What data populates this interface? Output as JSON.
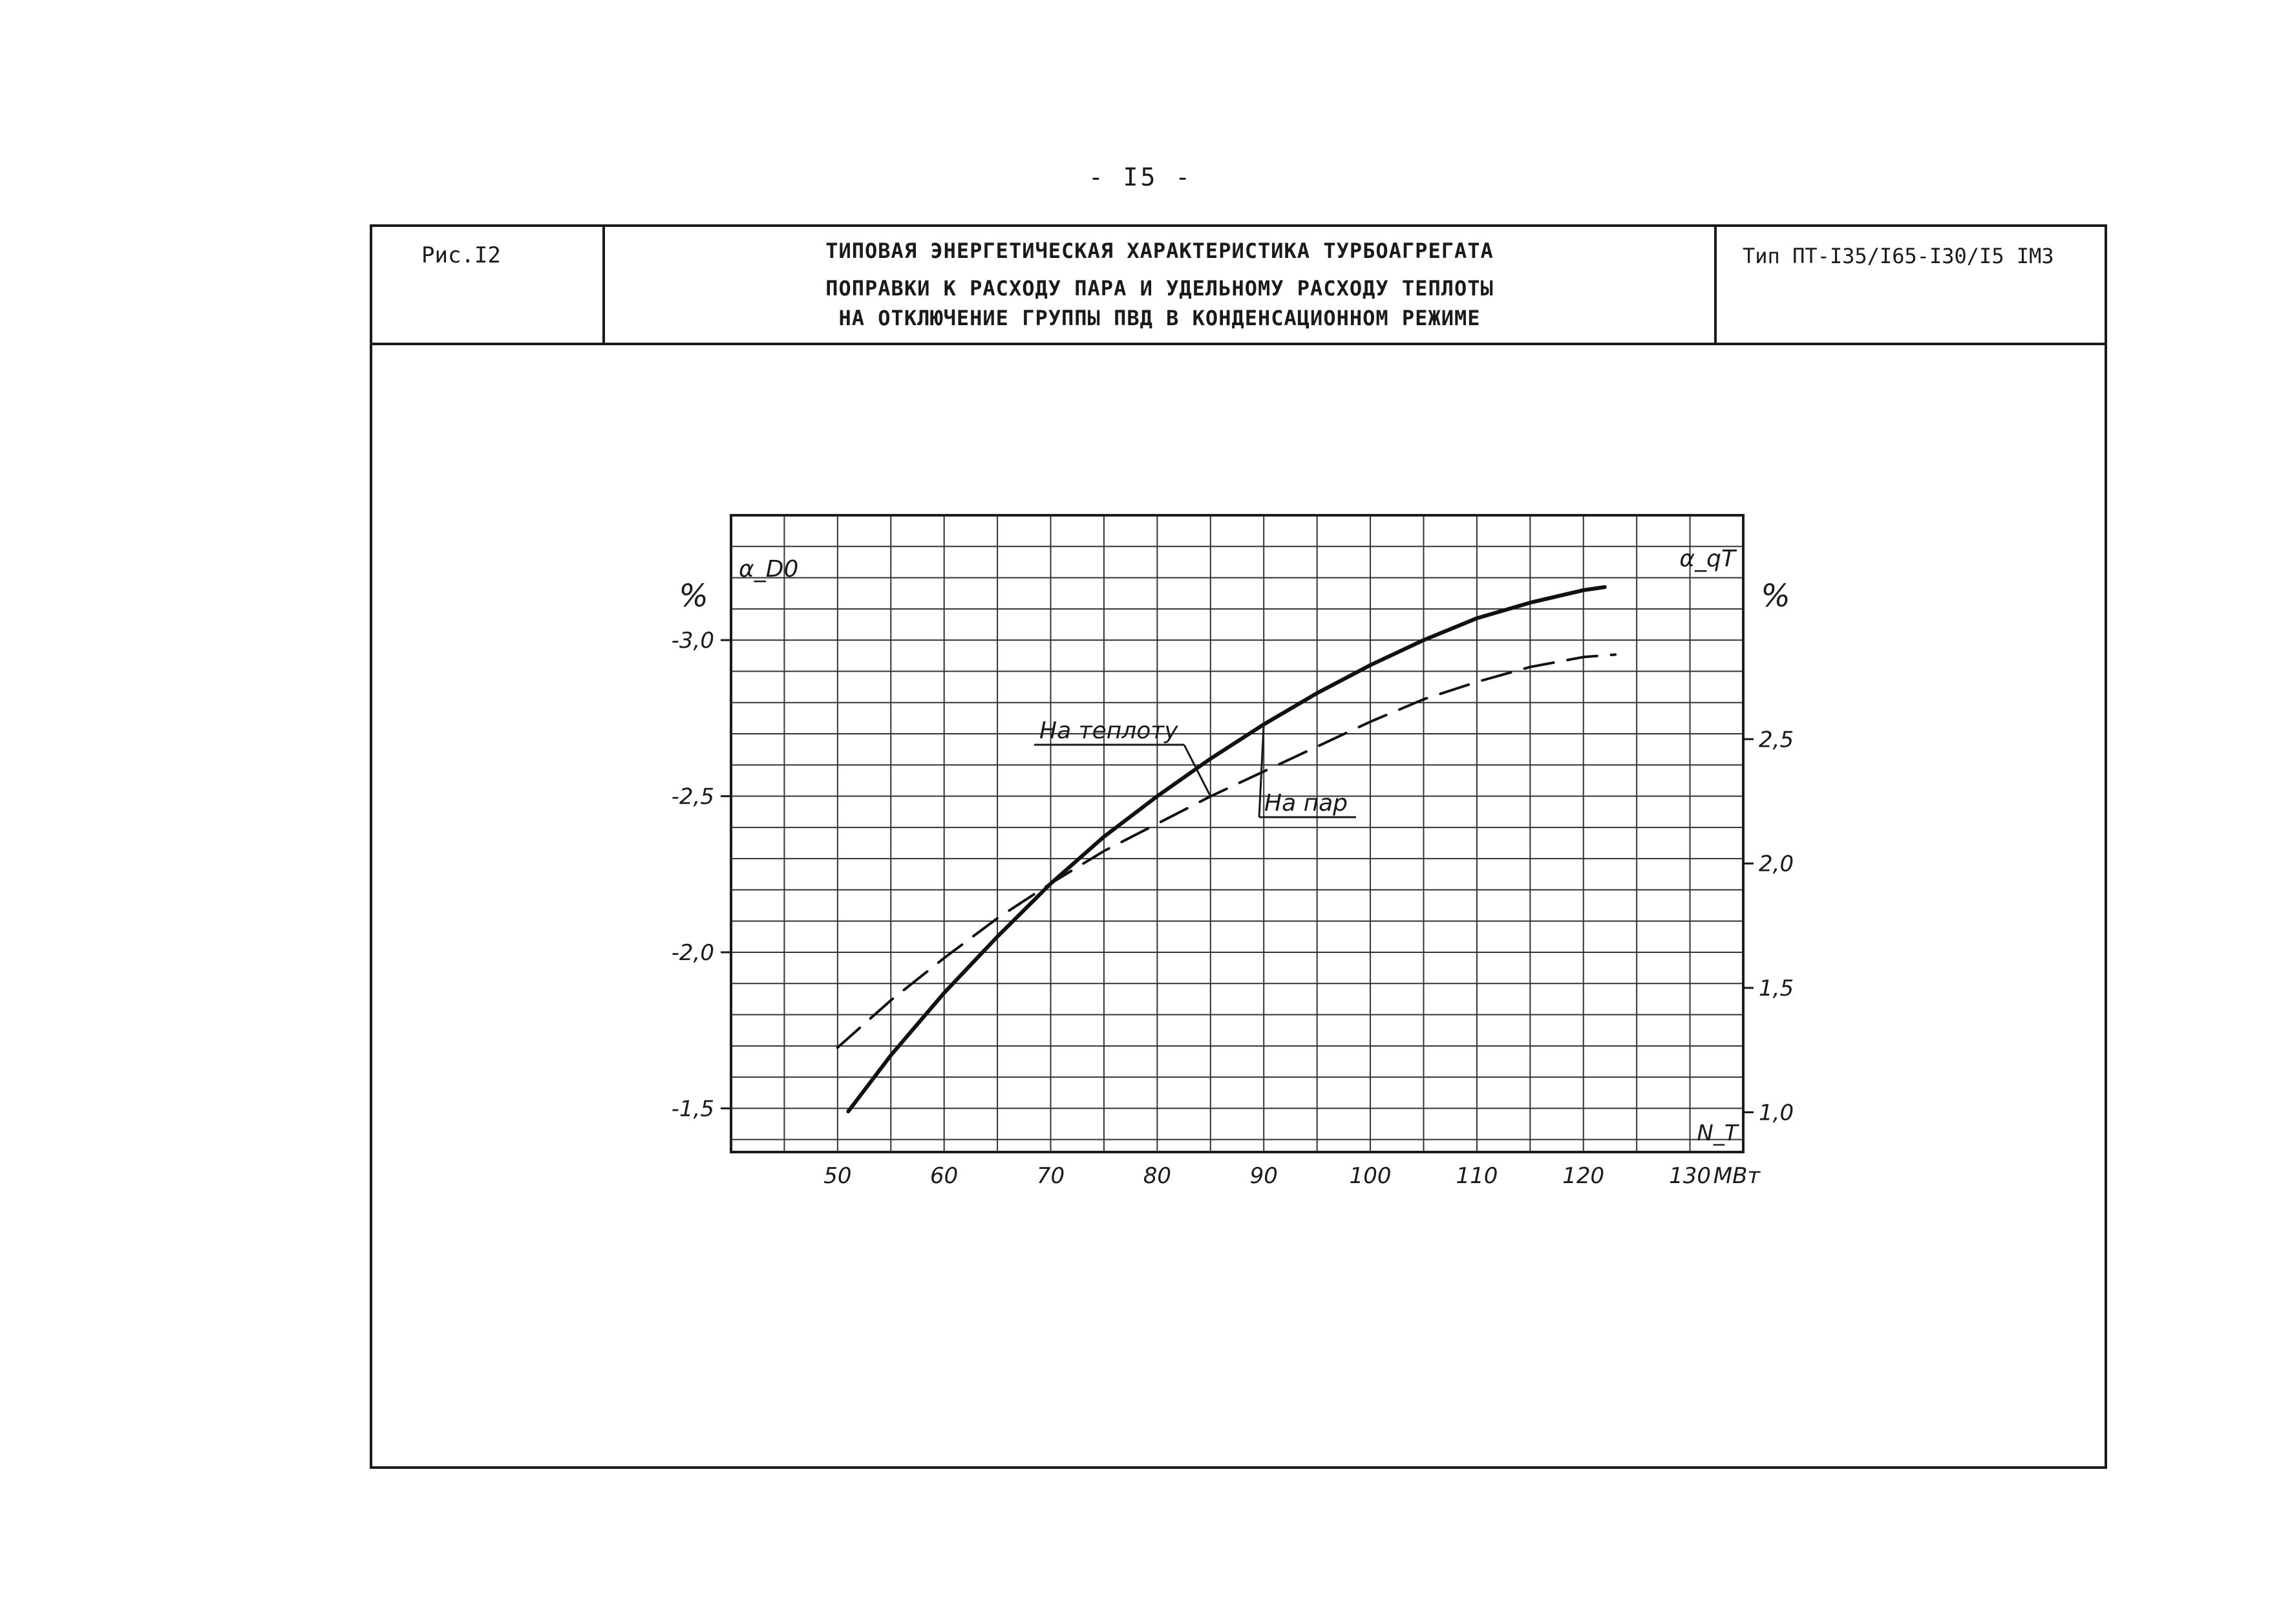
{
  "page_number": "- I5 -",
  "header": {
    "figure_label": "Рис.I2",
    "title_line1": "ТИПОВАЯ ЭНЕРГЕТИЧЕСКАЯ ХАРАКТЕРИСТИКА ТУРБОАГРЕГАТА",
    "title_line2": "ПОПРАВКИ К РАСХОДУ ПАРА И УДЕЛЬНОМУ РАСХОДУ ТЕПЛОТЫ",
    "title_line3": "НА ОТКЛЮЧЕНИЕ ГРУППЫ ПВД В КОНДЕНСАЦИОННОМ РЕЖИМЕ",
    "type_label": "Тип ПТ-I35/I65-I30/I5 ІМЗ"
  },
  "chart_data": {
    "type": "line",
    "x_axis": {
      "label": "МВт",
      "range": [
        40,
        135
      ],
      "ticks": [
        50,
        60,
        70,
        80,
        90,
        100,
        110,
        120,
        130
      ],
      "tick_labels": [
        "50",
        "60",
        "70",
        "80",
        "90",
        "100",
        "110",
        "120",
        "130"
      ],
      "end_label": "N_T"
    },
    "y_left": {
      "symbol": "α_D0",
      "unit": "%",
      "range": [
        -1.36,
        -3.4
      ],
      "ticks": [
        -3.0,
        -2.5,
        -2.0,
        -1.5
      ],
      "tick_labels": [
        "-3,0",
        "-2,5",
        "-2,0",
        "-1,5"
      ]
    },
    "y_right": {
      "symbol": "α_qT",
      "unit": "%",
      "range": [
        0.84,
        3.4
      ],
      "ticks": [
        2.5,
        2.0,
        1.5,
        1.0
      ],
      "tick_labels": [
        "2,5",
        "2,0",
        "1,5",
        "1,0"
      ]
    },
    "grid": true,
    "series": [
      {
        "name": "На теплоту",
        "axis": "right",
        "style": "dashed",
        "x": [
          50,
          55,
          60,
          65,
          70,
          75,
          80,
          85,
          90,
          95,
          100,
          105,
          110,
          115,
          120,
          123
        ],
        "y": [
          1.26,
          1.45,
          1.62,
          1.78,
          1.92,
          2.05,
          2.16,
          2.27,
          2.37,
          2.47,
          2.57,
          2.66,
          2.73,
          2.79,
          2.83,
          2.84
        ]
      },
      {
        "name": "На пар",
        "axis": "left",
        "style": "solid",
        "x": [
          51,
          55,
          60,
          65,
          70,
          75,
          80,
          85,
          90,
          95,
          100,
          105,
          110,
          115,
          120,
          122
        ],
        "y": [
          -1.49,
          -1.67,
          -1.87,
          -2.05,
          -2.22,
          -2.37,
          -2.5,
          -2.62,
          -2.73,
          -2.83,
          -2.92,
          -3.0,
          -3.07,
          -3.12,
          -3.16,
          -3.17
        ]
      }
    ]
  }
}
